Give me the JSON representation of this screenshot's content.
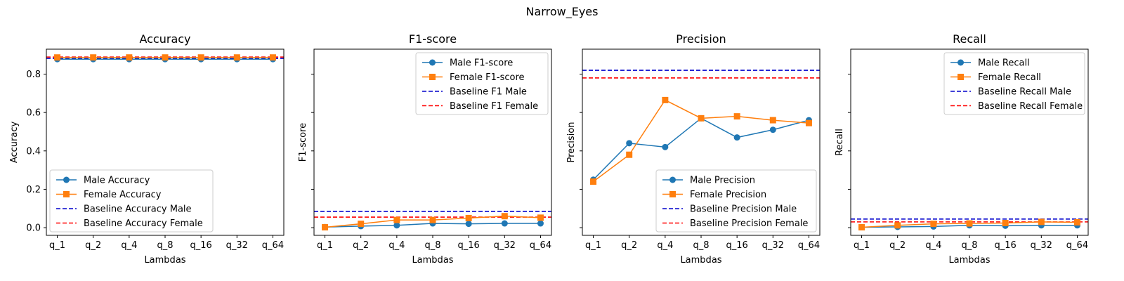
{
  "suptitle": "Narrow_Eyes",
  "chart_data": [
    {
      "type": "line",
      "title": "Accuracy",
      "xlabel": "Lambdas",
      "ylabel": "Accuracy",
      "categories": [
        "q_1",
        "q_2",
        "q_4",
        "q_8",
        "q_16",
        "q_32",
        "q_64"
      ],
      "ylim": [
        -0.04,
        0.93
      ],
      "yticks": [
        0.0,
        0.2,
        0.4,
        0.6,
        0.8
      ],
      "ytick_labels": [
        "0.0",
        "0.2",
        "0.4",
        "0.6",
        "0.8"
      ],
      "legend_position": "lower-left",
      "series": [
        {
          "name": "Male Accuracy",
          "color": "#1f77b4",
          "marker": "circle",
          "values": [
            0.878,
            0.878,
            0.878,
            0.878,
            0.878,
            0.878,
            0.878
          ]
        },
        {
          "name": "Female Accuracy",
          "color": "#ff7f0e",
          "marker": "square",
          "values": [
            0.887,
            0.887,
            0.887,
            0.887,
            0.887,
            0.887,
            0.887
          ]
        }
      ],
      "baselines": [
        {
          "name": "Baseline Accuracy Male",
          "color": "#0000cc",
          "value": 0.882
        },
        {
          "name": "Baseline Accuracy Female",
          "color": "#ff0000",
          "value": 0.889
        }
      ]
    },
    {
      "type": "line",
      "title": "F1-score",
      "xlabel": "Lambdas",
      "ylabel": "F1-score",
      "categories": [
        "q_1",
        "q_2",
        "q_4",
        "q_8",
        "q_16",
        "q_32",
        "q_64"
      ],
      "ylim": [
        -0.04,
        0.93
      ],
      "yticks": [
        0.0,
        0.2,
        0.4,
        0.6,
        0.8
      ],
      "ytick_labels": [
        "",
        "",
        "",
        "",
        ""
      ],
      "legend_position": "upper-right",
      "series": [
        {
          "name": "Male F1-score",
          "color": "#1f77b4",
          "marker": "circle",
          "values": [
            0.003,
            0.008,
            0.012,
            0.022,
            0.02,
            0.022,
            0.022
          ]
        },
        {
          "name": "Female F1-score",
          "color": "#ff7f0e",
          "marker": "square",
          "values": [
            0.002,
            0.02,
            0.04,
            0.04,
            0.05,
            0.06,
            0.052
          ]
        }
      ],
      "baselines": [
        {
          "name": "Baseline F1 Male",
          "color": "#0000cc",
          "value": 0.085
        },
        {
          "name": "Baseline F1 Female",
          "color": "#ff0000",
          "value": 0.055
        }
      ]
    },
    {
      "type": "line",
      "title": "Precision",
      "xlabel": "Lambdas",
      "ylabel": "Precision",
      "categories": [
        "q_1",
        "q_2",
        "q_4",
        "q_8",
        "q_16",
        "q_32",
        "q_64"
      ],
      "ylim": [
        -0.04,
        0.93
      ],
      "yticks": [
        0.0,
        0.2,
        0.4,
        0.6,
        0.8
      ],
      "ytick_labels": [
        "",
        "",
        "",
        "",
        ""
      ],
      "legend_position": "lower-right",
      "series": [
        {
          "name": "Male Precision",
          "color": "#1f77b4",
          "marker": "circle",
          "values": [
            0.25,
            0.44,
            0.42,
            0.57,
            0.47,
            0.51,
            0.56
          ]
        },
        {
          "name": "Female Precision",
          "color": "#ff7f0e",
          "marker": "square",
          "values": [
            0.24,
            0.38,
            0.665,
            0.57,
            0.58,
            0.56,
            0.545
          ]
        }
      ],
      "baselines": [
        {
          "name": "Baseline Precision Male",
          "color": "#0000cc",
          "value": 0.82
        },
        {
          "name": "Baseline Precision Female",
          "color": "#ff0000",
          "value": 0.78
        }
      ]
    },
    {
      "type": "line",
      "title": "Recall",
      "xlabel": "Lambdas",
      "ylabel": "Recall",
      "categories": [
        "q_1",
        "q_2",
        "q_4",
        "q_8",
        "q_16",
        "q_32",
        "q_64"
      ],
      "ylim": [
        -0.04,
        0.93
      ],
      "yticks": [
        0.0,
        0.2,
        0.4,
        0.6,
        0.8
      ],
      "ytick_labels": [
        "",
        "",
        "",
        "",
        ""
      ],
      "legend_position": "upper-right",
      "series": [
        {
          "name": "Male Recall",
          "color": "#1f77b4",
          "marker": "circle",
          "values": [
            0.002,
            0.004,
            0.006,
            0.012,
            0.01,
            0.012,
            0.012
          ]
        },
        {
          "name": "Female Recall",
          "color": "#ff7f0e",
          "marker": "square",
          "values": [
            0.002,
            0.012,
            0.02,
            0.022,
            0.024,
            0.03,
            0.028
          ]
        }
      ],
      "baselines": [
        {
          "name": "Baseline Recall Male",
          "color": "#0000cc",
          "value": 0.045
        },
        {
          "name": "Baseline Recall Female",
          "color": "#ff0000",
          "value": 0.03
        }
      ]
    }
  ]
}
